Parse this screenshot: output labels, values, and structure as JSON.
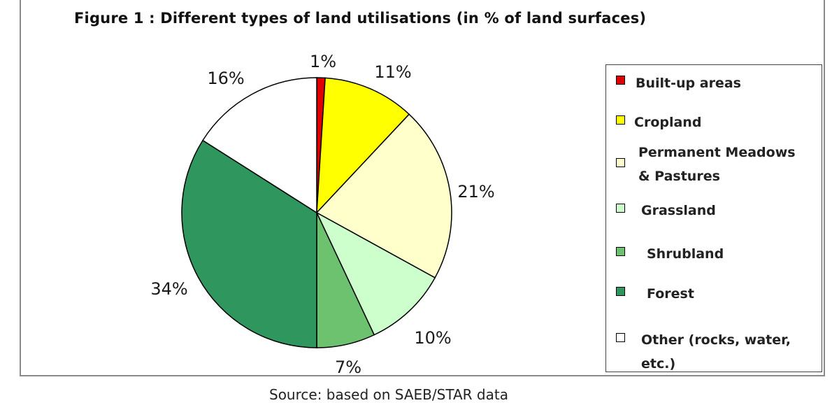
{
  "title": "Figure 1 : Different types of land utilisations (in % of land surfaces)",
  "source": "Source: based on SAEB/STAR data",
  "chart_data": {
    "type": "pie",
    "title": "Figure 1 : Different types of land utilisations (in % of land surfaces)",
    "slices": [
      {
        "name": "Built-up areas",
        "value": 1,
        "label": "1%",
        "color": "#e00000"
      },
      {
        "name": "Cropland",
        "value": 11,
        "label": "11%",
        "color": "#ffff00"
      },
      {
        "name": "Permanent Meadows & Pastures",
        "value": 21,
        "label": "21%",
        "color": "#ffffcc"
      },
      {
        "name": "Grassland",
        "value": 10,
        "label": "10%",
        "color": "#ccffcc"
      },
      {
        "name": "Shrubland",
        "value": 7,
        "label": "7%",
        "color": "#6cc26f"
      },
      {
        "name": "Forest",
        "value": 34,
        "label": "34%",
        "color": "#2f965e"
      },
      {
        "name": "Other (rocks, water, etc.)",
        "value": 16,
        "label": "16%",
        "color": "#ffffff"
      }
    ],
    "legend_position": "right"
  },
  "legend": {
    "items": [
      {
        "line1": "Built-up areas",
        "line2": ""
      },
      {
        "line1": "Cropland",
        "line2": ""
      },
      {
        "line1": "Permanent Meadows",
        "line2": "& Pastures"
      },
      {
        "line1": "Grassland",
        "line2": ""
      },
      {
        "line1": "Shrubland",
        "line2": ""
      },
      {
        "line1": "Forest",
        "line2": ""
      },
      {
        "line1": "Other (rocks, water,",
        "line2": "etc.)"
      }
    ]
  }
}
